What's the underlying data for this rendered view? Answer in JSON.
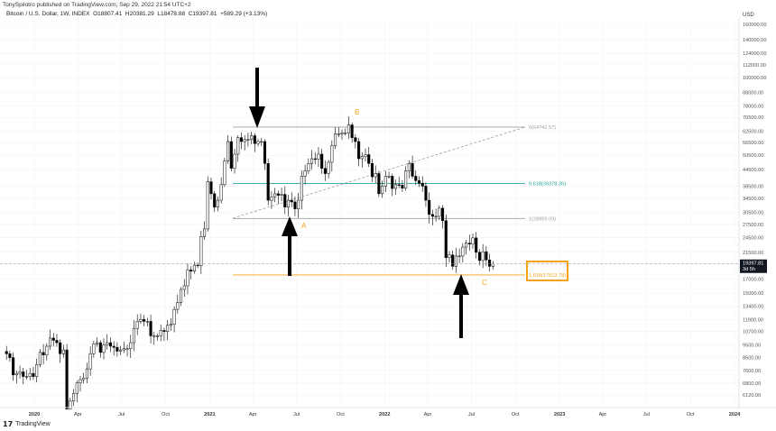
{
  "header": {
    "publisher": "TonySpilotro published on TradingView.com, Sep 29, 2022 21:54 UTC+2",
    "symbol": "Bitcoin / U.S. Dollar, 1W, INDEX",
    "open": "O18807.41",
    "high": "H20381.29",
    "low": "L18478.88",
    "close": "C19397.81",
    "change": "+589.29 (+3.13%)"
  },
  "footer": {
    "logo": "TradingView"
  },
  "annotations": {
    "a": "A",
    "b": "B",
    "c": "C"
  },
  "colors": {
    "accent": "#f7a21b",
    "fib_618": "#26a69a",
    "fib_line": "#9e9e9e",
    "candle_down": "#000000",
    "candle_up": "#ffffff"
  },
  "chart_data": {
    "type": "candlestick",
    "scale": "log",
    "currency": "USD",
    "first_week": "2019-11-04",
    "weekly_closes": [
      8800,
      8500,
      7300,
      7400,
      7500,
      7200,
      7200,
      7400,
      7200,
      8000,
      8900,
      8700,
      9400,
      10100,
      9900,
      9700,
      8800,
      9100,
      5400,
      5800,
      6200,
      6800,
      7000,
      7100,
      7700,
      8800,
      9600,
      9700,
      8900,
      9500,
      9700,
      9400,
      9300,
      9000,
      9100,
      9200,
      9200,
      9700,
      11000,
      11700,
      11900,
      11700,
      11700,
      10300,
      10300,
      10300,
      10800,
      10700,
      11300,
      11400,
      13000,
      13800,
      15500,
      16000,
      18400,
      18200,
      19200,
      19100,
      24700,
      26400,
      40000,
      36000,
      32000,
      34000,
      39000,
      48000,
      57000,
      45000,
      51000,
      59000,
      57000,
      58000,
      58000,
      60000,
      56000,
      57000,
      57000,
      47000,
      34000,
      35000,
      36000,
      35500,
      35800,
      32000,
      34000,
      33500,
      31500,
      34000,
      42000,
      44000,
      47000,
      49000,
      48800,
      51000,
      45000,
      43000,
      47500,
      55000,
      61000,
      61000,
      61500,
      61500,
      66000,
      59000,
      57000,
      49000,
      50000,
      50800,
      47000,
      41800,
      43000,
      36000,
      38500,
      42000,
      42000,
      37700,
      39000,
      38800,
      37800,
      44000,
      47000,
      42000,
      40400,
      39500,
      38500,
      34000,
      30000,
      29500,
      29500,
      31700,
      28400,
      20500,
      21000,
      19000,
      20800,
      20800,
      22500,
      23300,
      23100,
      24400,
      21500,
      20000,
      21600,
      20100,
      19000,
      19397.81
    ],
    "last_price": {
      "value": "19397.81",
      "countdown": "3d 5h"
    },
    "y_ticks": [
      "160000.00",
      "140000.00",
      "124000.00",
      "112000.00",
      "100000.00",
      "88000.00",
      "78000.00",
      "70500.00",
      "62500.00",
      "56500.00",
      "50500.00",
      "44500.00",
      "38500.00",
      "34500.00",
      "30500.00",
      "27500.00",
      "24500.00",
      "21500.00",
      "17000.00",
      "15000.00",
      "13400.00",
      "11900.00",
      "10700.00",
      "9500.00",
      "8500.00",
      "7600.00",
      "6800.00",
      "6120.00"
    ],
    "x_ticks": [
      {
        "label": "2020",
        "date": "2020-01-01",
        "bold": true
      },
      {
        "label": "Apr",
        "date": "2020-04-01"
      },
      {
        "label": "Jul",
        "date": "2020-07-01"
      },
      {
        "label": "Oct",
        "date": "2020-10-01"
      },
      {
        "label": "2021",
        "date": "2021-01-01",
        "bold": true
      },
      {
        "label": "Apr",
        "date": "2021-04-01"
      },
      {
        "label": "Jul",
        "date": "2021-07-01"
      },
      {
        "label": "Oct",
        "date": "2021-10-01"
      },
      {
        "label": "2022",
        "date": "2022-01-01",
        "bold": true
      },
      {
        "label": "Apr",
        "date": "2022-04-01"
      },
      {
        "label": "Jul",
        "date": "2022-07-01"
      },
      {
        "label": "Oct",
        "date": "2022-10-01"
      },
      {
        "label": "2023",
        "date": "2023-01-01",
        "bold": true
      },
      {
        "label": "Apr",
        "date": "2023-04-01"
      },
      {
        "label": "Jul",
        "date": "2023-07-01"
      },
      {
        "label": "Oct",
        "date": "2023-10-01"
      },
      {
        "label": "2024",
        "date": "2024-01-01",
        "bold": true
      }
    ],
    "fib_levels": [
      {
        "label": "0(64742.57)",
        "price": 64742.57,
        "color": "#9e9e9e"
      },
      {
        "label": "0.618(39378.36)",
        "price": 39378.36,
        "color": "#26a69a"
      },
      {
        "label": "1(28959.09)",
        "price": 28959.09,
        "color": "#9e9e9e"
      },
      {
        "label": "1.618(17613.78)",
        "price": 17613.78,
        "color": "#f7a21b"
      }
    ]
  }
}
